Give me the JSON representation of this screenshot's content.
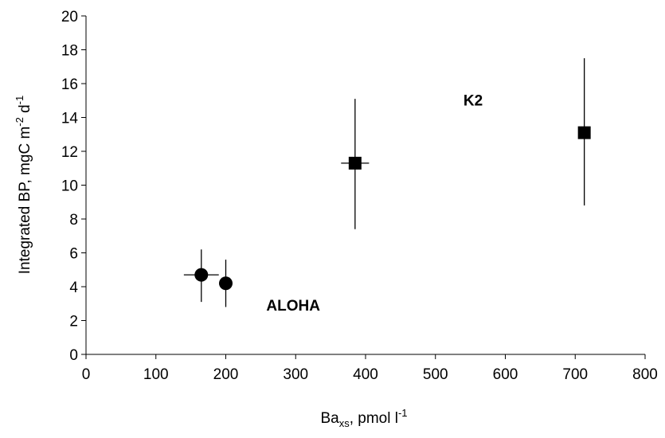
{
  "chart_data": {
    "type": "scatter",
    "title": "",
    "xlabel": {
      "base": "Ba",
      "sub": "xs",
      "rest": ",  pmol l",
      "sup": "-1"
    },
    "ylabel": {
      "part1": "Integrated BP, mgC m",
      "sup1": "-2",
      "part2": " d",
      "sup2": "-1"
    },
    "xlim": [
      0,
      800
    ],
    "ylim": [
      0,
      20
    ],
    "xticks": [
      0,
      100,
      200,
      300,
      400,
      500,
      600,
      700,
      800
    ],
    "yticks": [
      0,
      2,
      4,
      6,
      8,
      10,
      12,
      14,
      16,
      18,
      20
    ],
    "grid": false,
    "legend": "none",
    "series": [
      {
        "marker": "circle",
        "points": [
          {
            "x": 165,
            "y": 4.7,
            "xerr": [
              140,
              190
            ],
            "yerr": [
              3.1,
              6.2
            ]
          },
          {
            "x": 200,
            "y": 4.2,
            "xerr": [
              192,
              208
            ],
            "yerr": [
              2.8,
              5.6
            ]
          }
        ]
      },
      {
        "marker": "square",
        "points": [
          {
            "x": 385,
            "y": 11.3,
            "xerr": [
              365,
              405
            ],
            "yerr": [
              7.4,
              15.1
            ]
          },
          {
            "x": 713,
            "y": 13.1,
            "xerr": [
              713,
              713
            ],
            "yerr": [
              8.8,
              17.5
            ]
          }
        ]
      }
    ],
    "annotations": [
      {
        "text": "K2",
        "x": 540,
        "y": 14.7
      },
      {
        "text": "ALOHA",
        "x": 258,
        "y": 2.6
      }
    ]
  }
}
